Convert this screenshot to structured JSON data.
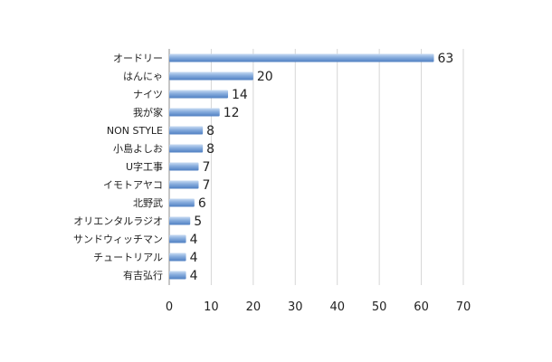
{
  "chart_data": {
    "type": "bar",
    "orientation": "horizontal",
    "categories": [
      "オードリー",
      "はんにゃ",
      "ナイツ",
      "我が家",
      "NON STYLE",
      "小島よしお",
      "U字工事",
      "イモトアヤコ",
      "北野武",
      "オリエンタルラジオ",
      "サンドウィッチマン",
      "チュートリアル",
      "有吉弘行"
    ],
    "values": [
      63,
      20,
      14,
      12,
      8,
      8,
      7,
      7,
      6,
      5,
      4,
      4,
      4
    ],
    "value_labels": [
      "63",
      "20",
      "14",
      "12",
      "8",
      "8",
      "7",
      "7",
      "6",
      "5",
      "4",
      "4",
      "4"
    ],
    "xticks": [
      0,
      10,
      20,
      30,
      40,
      50,
      60,
      70
    ],
    "tick_labels": [
      "0",
      "10",
      "20",
      "30",
      "40",
      "50",
      "60",
      "70"
    ],
    "xlim": [
      0,
      70
    ],
    "grid": true,
    "legend": "none",
    "colors": {
      "bar_light": "#c9dcf3",
      "bar_mid": "#86acdd",
      "bar_dark": "#4f7fc2"
    }
  }
}
